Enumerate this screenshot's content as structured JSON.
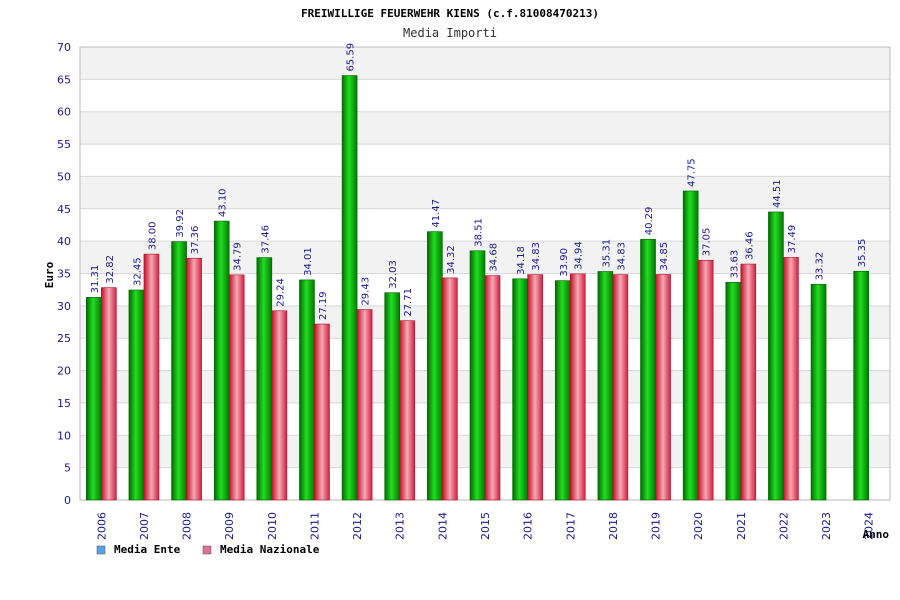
{
  "chart_data": {
    "type": "bar",
    "title": "FREIWILLIGE FEUERWEHR KIENS (c.f.81008470213)",
    "subtitle": "Media Importi",
    "ylabel": "Euro",
    "xlabel": "Anno",
    "ylim": [
      0,
      70
    ],
    "yticks": [
      "0",
      "5",
      "10",
      "15",
      "20",
      "25",
      "30",
      "35",
      "40",
      "45",
      "50",
      "55",
      "60",
      "65",
      "70"
    ],
    "grid": true,
    "legend_position": "bottom-left",
    "categories": [
      "2006",
      "2007",
      "2008",
      "2009",
      "2010",
      "2011",
      "2012",
      "2013",
      "2014",
      "2015",
      "2016",
      "2017",
      "2018",
      "2019",
      "2020",
      "2021",
      "2022",
      "2023",
      "2024"
    ],
    "series": [
      {
        "name": "Media Ente",
        "color": "#00aa00",
        "legend_color": "#5aa0e6",
        "values": [
          31.31,
          32.45,
          39.92,
          43.1,
          37.46,
          34.01,
          65.59,
          32.03,
          41.47,
          38.51,
          34.18,
          33.9,
          35.31,
          40.29,
          47.75,
          33.63,
          44.51,
          33.32,
          35.35
        ],
        "labels": [
          "31.31",
          "32.45",
          "39.92",
          "43.10",
          "37.46",
          "34.01",
          "65.59",
          "32.03",
          "41.47",
          "38.51",
          "34.18",
          "33.90",
          "35.31",
          "40.29",
          "47.75",
          "33.63",
          "44.51",
          "33.32",
          "35.35"
        ]
      },
      {
        "name": "Media Nazionale",
        "color": "#e0404a",
        "legend_color": "#e07090",
        "values": [
          32.82,
          38.0,
          37.36,
          34.79,
          29.24,
          27.19,
          29.43,
          27.71,
          34.32,
          34.68,
          34.83,
          34.94,
          34.83,
          34.85,
          37.05,
          36.46,
          37.49,
          null,
          null
        ],
        "labels": [
          "32.82",
          "38.00",
          "37.36",
          "34.79",
          "29.24",
          "27.19",
          "29.43",
          "27.71",
          "34.32",
          "34.68",
          "34.83",
          "34.94",
          "34.83",
          "34.85",
          "37.05",
          "36.46",
          "37.49",
          "",
          ""
        ]
      }
    ]
  }
}
